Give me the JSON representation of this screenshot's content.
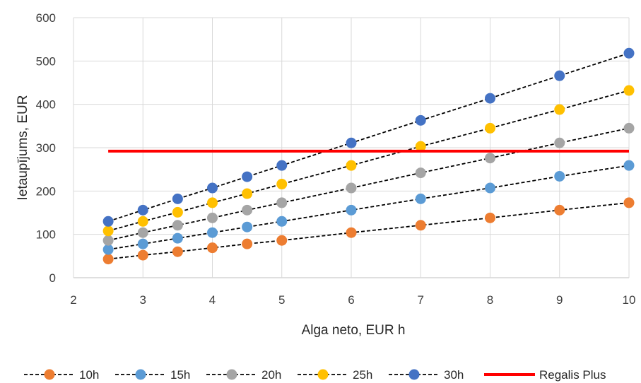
{
  "chart_data": {
    "type": "line",
    "xlabel": "Alga neto, EUR h",
    "ylabel": "Ietaupījums, EUR",
    "xlim": [
      2,
      10
    ],
    "ylim": [
      0,
      600
    ],
    "xticks": [
      "2",
      "3",
      "4",
      "5",
      "6",
      "7",
      "8",
      "9",
      "10"
    ],
    "yticks": [
      "0",
      "100",
      "200",
      "300",
      "400",
      "500",
      "600"
    ],
    "x": [
      2.5,
      3,
      3.5,
      4,
      4.5,
      5,
      6,
      7,
      8,
      9,
      10
    ],
    "grid": true,
    "legend_position": "bottom",
    "series": [
      {
        "name": "10h",
        "color": "#ED7D31",
        "style": "dashed-marker",
        "values": [
          43,
          52,
          60,
          69,
          78,
          86,
          104,
          121,
          138,
          156,
          173
        ]
      },
      {
        "name": "15h",
        "color": "#5B9BD5",
        "style": "dashed-marker",
        "values": [
          65,
          78,
          91,
          104,
          117,
          130,
          156,
          182,
          207,
          234,
          259
        ]
      },
      {
        "name": "20h",
        "color": "#A5A5A5",
        "style": "dashed-marker",
        "values": [
          86,
          104,
          121,
          138,
          156,
          173,
          207,
          242,
          276,
          311,
          345
        ]
      },
      {
        "name": "25h",
        "color": "#FFC000",
        "style": "dashed-marker",
        "values": [
          108,
          130,
          151,
          173,
          194,
          216,
          259,
          303,
          345,
          388,
          432
        ]
      },
      {
        "name": "30h",
        "color": "#4472C4",
        "style": "dashed-marker",
        "values": [
          130,
          156,
          182,
          207,
          233,
          259,
          311,
          363,
          414,
          466,
          518
        ]
      },
      {
        "name": "Regalis Plus",
        "color": "#FF0000",
        "style": "solid",
        "values": [
          292,
          292,
          292,
          292,
          292,
          292,
          292,
          292,
          292,
          292,
          292
        ]
      }
    ]
  }
}
